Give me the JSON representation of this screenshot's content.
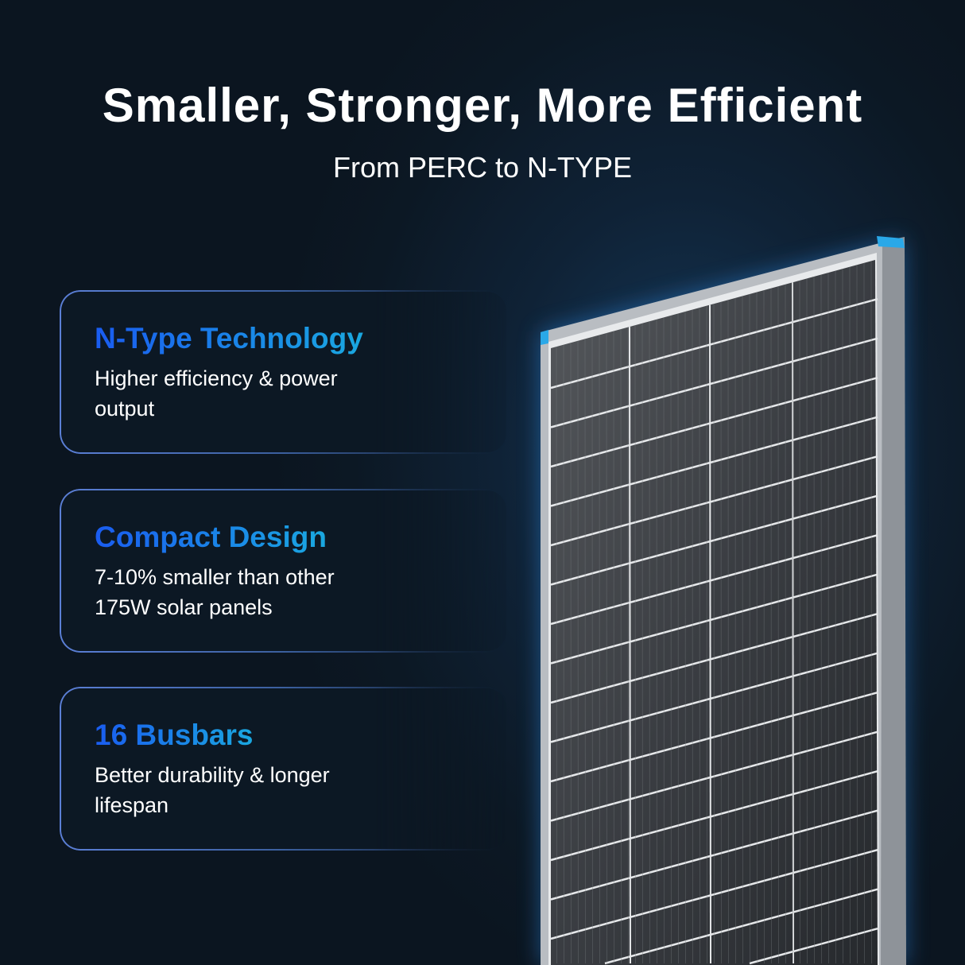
{
  "header": {
    "title": "Smaller, Stronger, More Efficient",
    "subtitle": "From PERC to N-TYPE"
  },
  "features": [
    {
      "title": "N-Type Technology",
      "description": "Higher efficiency & power output"
    },
    {
      "title": "Compact Design",
      "description": "7-10% smaller than other 175W solar panels"
    },
    {
      "title": "16 Busbars",
      "description": "Better durability & longer lifespan"
    }
  ],
  "colors": {
    "accent_start": "#1a5cf0",
    "accent_end": "#1aa8e0",
    "frame_corner": "#2aa8e8",
    "background": "#0c1824"
  },
  "image": {
    "subject": "solar-panel"
  }
}
